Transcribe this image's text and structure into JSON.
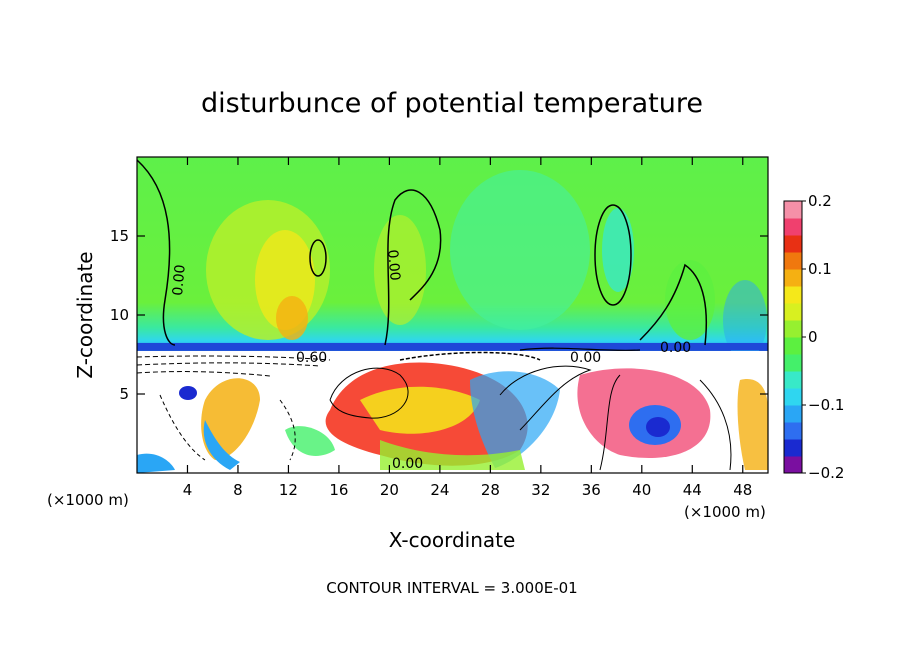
{
  "chart_data": {
    "type": "heatmap",
    "title": "disturbunce of potential temperature",
    "xlabel": "X-coordinate",
    "ylabel": "Z-coordinate",
    "x_unit": "(×1000 m)",
    "xlim": [
      0,
      50
    ],
    "ylim": [
      0,
      20
    ],
    "x_ticks": [
      4,
      8,
      12,
      16,
      20,
      24,
      28,
      32,
      36,
      40,
      44,
      48
    ],
    "y_ticks": [
      5,
      10,
      15
    ],
    "colorbar": {
      "range": [
        -0.2,
        0.2
      ],
      "tick_labels": [
        "0.2",
        "0.1",
        "0",
        "−0.1",
        "−0.2"
      ],
      "tick_values": [
        0.2,
        0.1,
        0,
        -0.1,
        -0.2
      ],
      "colors": [
        "#7a0fa0",
        "#1a2ad0",
        "#2e6ef0",
        "#2aa6f5",
        "#2fd6f0",
        "#38e9c8",
        "#44f06a",
        "#5cf040",
        "#96f030",
        "#d8f020",
        "#f5e81a",
        "#f5b012",
        "#f0780e",
        "#e83014",
        "#f0406e",
        "#f590a8"
      ]
    },
    "contour_labels": [
      "0.00",
      "0.00",
      "0.60",
      "0.00",
      "0.00",
      "0.00"
    ],
    "footer": "CONTOUR INTERVAL = 3.000E-01"
  }
}
